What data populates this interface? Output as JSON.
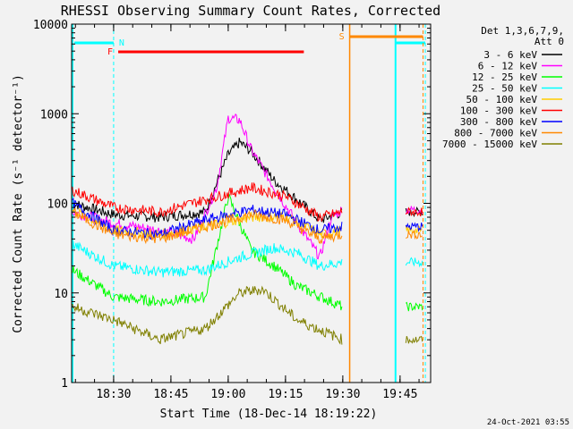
{
  "chart_data": {
    "type": "line",
    "title": "RHESSI Observing Summary Count Rates, Corrected",
    "xlabel": "Start Time (18-Dec-14 18:19:22)",
    "ylabel": "Corrected Count Rate (s⁻¹ detector⁻¹)",
    "yscale": "log",
    "ylim": [
      1,
      10000
    ],
    "x_range_minutes": [
      18.3167,
      19.8833
    ],
    "x_ticks": [
      {
        "t": 18.5,
        "label": "18:30"
      },
      {
        "t": 18.75,
        "label": "18:45"
      },
      {
        "t": 19.0,
        "label": "19:00"
      },
      {
        "t": 19.25,
        "label": "19:15"
      },
      {
        "t": 19.5,
        "label": "19:30"
      },
      {
        "t": 19.75,
        "label": "19:45"
      }
    ],
    "y_ticks": [
      {
        "v": 1,
        "label": "1"
      },
      {
        "v": 10,
        "label": "10"
      },
      {
        "v": 100,
        "label": "100"
      },
      {
        "v": 1000,
        "label": "1000"
      },
      {
        "v": 10000,
        "label": "10000"
      }
    ],
    "legend": {
      "header1": "Det 1,3,6,7,9,",
      "header2": "Att 0",
      "placement": "right"
    },
    "series": [
      {
        "name": "3 - 6 keV",
        "color": "#000000",
        "t": [
          18.32,
          18.5,
          18.7,
          18.9,
          19.0,
          19.05,
          19.1,
          19.2,
          19.3,
          19.4,
          19.5
        ],
        "y": [
          100,
          75,
          70,
          80,
          350,
          480,
          380,
          180,
          110,
          65,
          80
        ]
      },
      {
        "name": "6 - 12 keV",
        "color": "#ff00ff",
        "t": [
          18.32,
          18.5,
          18.7,
          18.85,
          18.95,
          19.0,
          19.05,
          19.1,
          19.2,
          19.3,
          19.4,
          19.45,
          19.5
        ],
        "y": [
          80,
          60,
          50,
          40,
          150,
          900,
          850,
          400,
          150,
          60,
          25,
          70,
          85
        ]
      },
      {
        "name": "12 - 25 keV",
        "color": "#00ff00",
        "t": [
          18.32,
          18.5,
          18.7,
          18.9,
          19.0,
          19.05,
          19.1,
          19.2,
          19.3,
          19.5
        ],
        "y": [
          18,
          9,
          8,
          9,
          120,
          60,
          30,
          20,
          12,
          7
        ]
      },
      {
        "name": "25 - 50 keV",
        "color": "#00ffff",
        "t": [
          18.32,
          18.5,
          18.7,
          18.9,
          19.05,
          19.2,
          19.3,
          19.4,
          19.5
        ],
        "y": [
          35,
          20,
          17,
          18,
          25,
          32,
          28,
          20,
          22
        ]
      },
      {
        "name": "50 - 100 keV",
        "color": "#ffcc00",
        "t": [
          18.32,
          18.5,
          18.7,
          18.9,
          19.1,
          19.25,
          19.4,
          19.5
        ],
        "y": [
          85,
          50,
          45,
          55,
          70,
          72,
          45,
          50
        ]
      },
      {
        "name": "100 - 300 keV",
        "color": "#ff0000",
        "t": [
          18.32,
          18.5,
          18.7,
          18.9,
          19.1,
          19.25,
          19.4,
          19.5
        ],
        "y": [
          140,
          90,
          80,
          110,
          150,
          120,
          70,
          80
        ]
      },
      {
        "name": "300 - 800 keV",
        "color": "#0000ff",
        "t": [
          18.32,
          18.5,
          18.7,
          18.9,
          19.1,
          19.25,
          19.4,
          19.5
        ],
        "y": [
          100,
          50,
          45,
          65,
          85,
          75,
          50,
          55
        ]
      },
      {
        "name": "800 - 7000 keV",
        "color": "#ff8800",
        "t": [
          18.32,
          18.5,
          18.7,
          18.9,
          19.1,
          19.25,
          19.4,
          19.5
        ],
        "y": [
          80,
          45,
          40,
          55,
          75,
          65,
          40,
          45
        ]
      },
      {
        "name": "7000 - 15000 keV",
        "color": "#808000",
        "t": [
          18.32,
          18.5,
          18.7,
          18.9,
          19.05,
          19.15,
          19.3,
          19.5
        ],
        "y": [
          7,
          5,
          3,
          4,
          10,
          11,
          5,
          3
        ]
      }
    ],
    "flags": [
      {
        "label": "N",
        "color": "#00ffff",
        "t0": 18.5,
        "t1": 18.5
      },
      {
        "label": "F",
        "color": "#ff0000",
        "t0": 18.52,
        "t1": 19.33
      },
      {
        "label": "S",
        "color": "#ff8800",
        "t0": 19.53,
        "t1": 19.85
      }
    ],
    "footer": "24-Oct-2021 03:55",
    "grid": false
  }
}
